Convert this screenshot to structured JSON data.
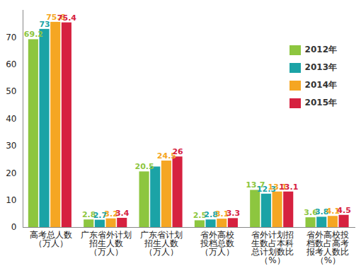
{
  "chart_data": {
    "type": "bar",
    "categories": [
      "高考总人数\n（万人）",
      "广东省外计划\n招生人数\n（万人）",
      "广东省计划\n招生人数\n（万人）",
      "省外高校\n投档总数\n（万人）",
      "省外计划招\n生数占本科\n总计划数比\n（%）",
      "省外高校投\n档数占高考\n报考人数比\n（%）"
    ],
    "series": [
      {
        "name": "2012年",
        "color": "#8dc63f",
        "values": [
          69.2,
          2.8,
          20.5,
          2.5,
          13.7,
          3.6
        ]
      },
      {
        "name": "2013年",
        "color": "#1ba3a6",
        "values": [
          73,
          2.7,
          22.3,
          2.8,
          12.3,
          3.8
        ],
        "value_labels": [
          "73",
          "2.7",
          null,
          "2.8",
          "12.3",
          "3.8"
        ]
      },
      {
        "name": "2014年",
        "color": "#f5a623",
        "values": [
          75.6,
          3.2,
          24.5,
          3.1,
          13.1,
          4.1
        ]
      },
      {
        "name": "2015年",
        "color": "#d6213f",
        "values": [
          75.4,
          3.4,
          26,
          3.3,
          13.1,
          4.5
        ]
      }
    ],
    "ylim": [
      0,
      80
    ],
    "yticks": [
      0,
      10,
      20,
      30,
      40,
      50,
      60,
      70
    ],
    "grid": false,
    "data_labels": true,
    "legend": "top-right"
  }
}
